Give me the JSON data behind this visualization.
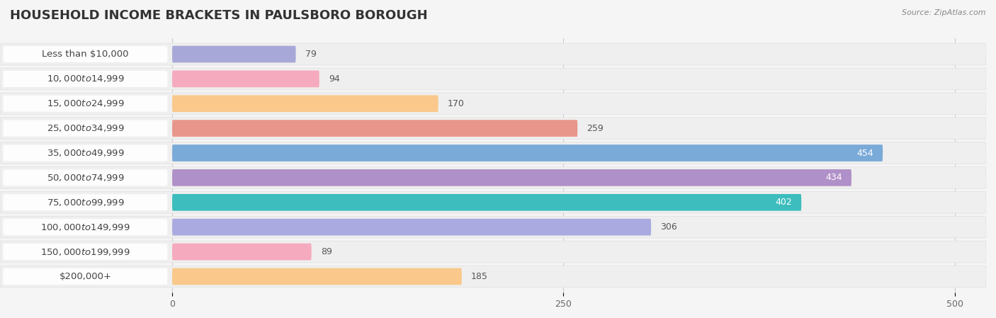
{
  "title": "Household Income Brackets in Paulsboro borough",
  "title_display": "HOUSEHOLD INCOME BRACKETS IN PAULSBORO BOROUGH",
  "source": "Source: ZipAtlas.com",
  "categories": [
    "Less than $10,000",
    "$10,000 to $14,999",
    "$15,000 to $24,999",
    "$25,000 to $34,999",
    "$35,000 to $49,999",
    "$50,000 to $74,999",
    "$75,000 to $99,999",
    "$100,000 to $149,999",
    "$150,000 to $199,999",
    "$200,000+"
  ],
  "values": [
    79,
    94,
    170,
    259,
    454,
    434,
    402,
    306,
    89,
    185
  ],
  "bar_colors": [
    "#a8a8d8",
    "#f5aabe",
    "#f9c88a",
    "#e8968c",
    "#7aaad8",
    "#b090c8",
    "#3dbdbd",
    "#aaaae0",
    "#f5aabe",
    "#f9c88a"
  ],
  "row_bg_color": "#efefef",
  "bar_bg_color": "#f8f8f8",
  "label_bg_color": "#ffffff",
  "xlim": [
    -110,
    520
  ],
  "data_xlim": [
    0,
    500
  ],
  "xticks": [
    0,
    250,
    500
  ],
  "background_color": "#f5f5f5",
  "title_fontsize": 13,
  "label_fontsize": 9.5,
  "value_fontsize": 9,
  "value_threshold": 340
}
